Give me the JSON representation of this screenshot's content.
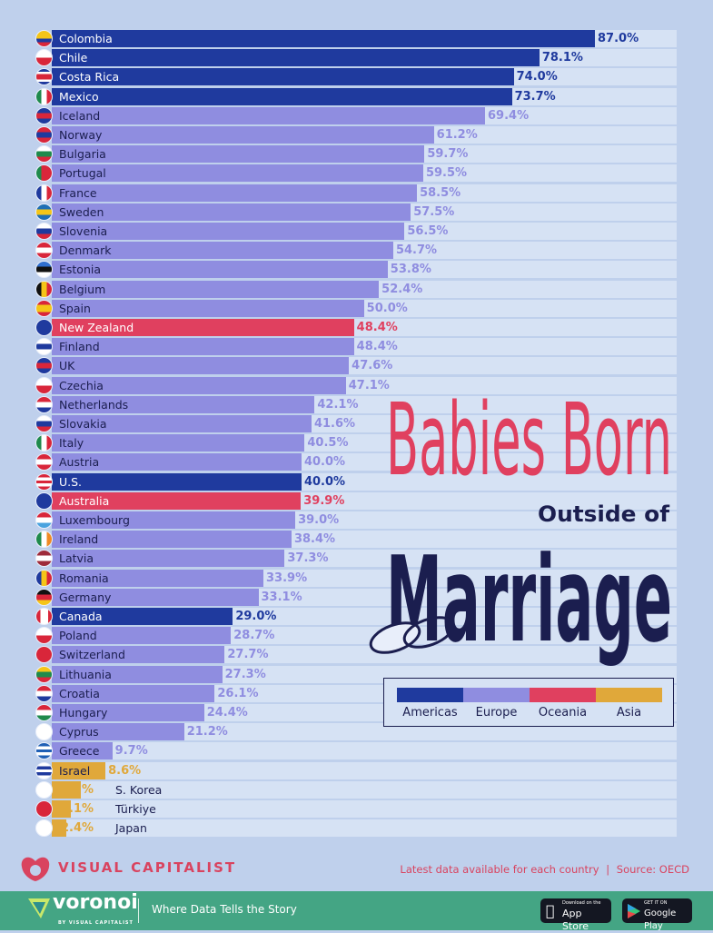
{
  "chart_data": {
    "type": "bar",
    "orientation": "horizontal",
    "title": "Babies Born Outside of Marriage",
    "title_parts": {
      "line1": "Babies Born",
      "line2": "Outside of",
      "line3": "Marriage"
    },
    "unit": "%",
    "xlim": [
      0,
      100
    ],
    "grid": false,
    "region_colors": {
      "Americas": "#1f3a9e",
      "Europe": "#8f8de0",
      "Oceania": "#e0405f",
      "Asia": "#e0a83a"
    },
    "legend": {
      "placement": "bottom-right",
      "entries": [
        "Americas",
        "Europe",
        "Oceania",
        "Asia"
      ]
    },
    "categories": [
      "Colombia",
      "Chile",
      "Costa Rica",
      "Mexico",
      "Iceland",
      "Norway",
      "Bulgaria",
      "Portugal",
      "France",
      "Sweden",
      "Slovenia",
      "Denmark",
      "Estonia",
      "Belgium",
      "Spain",
      "New Zealand",
      "Finland",
      "UK",
      "Czechia",
      "Netherlands",
      "Slovakia",
      "Italy",
      "Austria",
      "U.S.",
      "Australia",
      "Luxembourg",
      "Ireland",
      "Latvia",
      "Romania",
      "Germany",
      "Canada",
      "Poland",
      "Switzerland",
      "Lithuania",
      "Croatia",
      "Hungary",
      "Cyprus",
      "Greece",
      "Israel",
      "S. Korea",
      "Türkiye",
      "Japan"
    ],
    "values": [
      87.0,
      78.1,
      74.0,
      73.7,
      69.4,
      61.2,
      59.7,
      59.5,
      58.5,
      57.5,
      56.5,
      54.7,
      53.8,
      52.4,
      50.0,
      48.4,
      48.4,
      47.6,
      47.1,
      42.1,
      41.6,
      40.5,
      40.0,
      40.0,
      39.9,
      39.0,
      38.4,
      37.3,
      33.9,
      33.1,
      29.0,
      28.7,
      27.7,
      27.3,
      26.1,
      24.4,
      21.2,
      9.7,
      8.6,
      4.7,
      3.1,
      2.4
    ],
    "value_labels": [
      "87.0%",
      "78.1%",
      "74.0%",
      "73.7%",
      "69.4%",
      "61.2%",
      "59.7%",
      "59.5%",
      "58.5%",
      "57.5%",
      "56.5%",
      "54.7%",
      "53.8%",
      "52.4%",
      "50.0%",
      "48.4%",
      "48.4%",
      "47.6%",
      "47.1%",
      "42.1%",
      "41.6%",
      "40.5%",
      "40.0%",
      "40.0%",
      "39.9%",
      "39.0%",
      "38.4%",
      "37.3%",
      "33.9%",
      "33.1%",
      "29.0%",
      "28.7%",
      "27.7%",
      "27.3%",
      "26.1%",
      "24.4%",
      "21.2%",
      "9.7%",
      "8.6%",
      "4.7%",
      "3.1%",
      "2.4%"
    ],
    "regions": [
      "Americas",
      "Americas",
      "Americas",
      "Americas",
      "Europe",
      "Europe",
      "Europe",
      "Europe",
      "Europe",
      "Europe",
      "Europe",
      "Europe",
      "Europe",
      "Europe",
      "Europe",
      "Oceania",
      "Europe",
      "Europe",
      "Europe",
      "Europe",
      "Europe",
      "Europe",
      "Europe",
      "Americas",
      "Oceania",
      "Europe",
      "Europe",
      "Europe",
      "Europe",
      "Europe",
      "Americas",
      "Europe",
      "Europe",
      "Europe",
      "Europe",
      "Europe",
      "Europe",
      "Europe",
      "Asia",
      "Asia",
      "Asia",
      "Asia"
    ],
    "flags": [
      [
        "h",
        "#f5c518",
        "#f5c518",
        "#1f3a9e",
        "#d9263a"
      ],
      [
        "h",
        "#ffffff",
        "#d9263a"
      ],
      [
        "h",
        "#1f3a9e",
        "#fff",
        "#d9263a",
        "#d9263a",
        "#fff",
        "#1f3a9e"
      ],
      [
        "v",
        "#1f8a4c",
        "#ffffff",
        "#d9263a"
      ],
      [
        "h",
        "#1f3a9e",
        "#d9263a",
        "#1f3a9e"
      ],
      [
        "h",
        "#d9263a",
        "#1f3a9e",
        "#d9263a"
      ],
      [
        "h",
        "#ffffff",
        "#1f8a4c",
        "#d9263a"
      ],
      [
        "v",
        "#1f8a4c",
        "#d9263a",
        "#d9263a"
      ],
      [
        "v",
        "#1f3a9e",
        "#ffffff",
        "#d9263a"
      ],
      [
        "h",
        "#1f6fb5",
        "#f5c518",
        "#1f6fb5"
      ],
      [
        "h",
        "#ffffff",
        "#1f3a9e",
        "#d9263a"
      ],
      [
        "h",
        "#d9263a",
        "#ffffff",
        "#d9263a"
      ],
      [
        "h",
        "#2f6fd0",
        "#111111",
        "#ffffff"
      ],
      [
        "v",
        "#111111",
        "#f5c518",
        "#d9263a"
      ],
      [
        "h",
        "#d9263a",
        "#f5c518",
        "#f5c518",
        "#d9263a"
      ],
      [
        "h",
        "#1f3a9e",
        "#1f3a9e"
      ],
      [
        "h",
        "#ffffff",
        "#1f3a9e",
        "#ffffff"
      ],
      [
        "h",
        "#1f3a9e",
        "#d9263a",
        "#1f3a9e"
      ],
      [
        "h",
        "#ffffff",
        "#d9263a"
      ],
      [
        "h",
        "#d9263a",
        "#ffffff",
        "#1f3a9e"
      ],
      [
        "h",
        "#ffffff",
        "#1f3a9e",
        "#d9263a"
      ],
      [
        "v",
        "#1f8a4c",
        "#ffffff",
        "#d9263a"
      ],
      [
        "h",
        "#d9263a",
        "#ffffff",
        "#d9263a"
      ],
      [
        "h",
        "#d9263a",
        "#ffffff",
        "#d9263a",
        "#ffffff",
        "#d9263a"
      ],
      [
        "h",
        "#1f3a9e",
        "#1f3a9e"
      ],
      [
        "h",
        "#d9263a",
        "#ffffff",
        "#4aa3df"
      ],
      [
        "v",
        "#1f8a4c",
        "#ffffff",
        "#f08a24"
      ],
      [
        "h",
        "#9e2b3a",
        "#ffffff",
        "#9e2b3a"
      ],
      [
        "v",
        "#1f3a9e",
        "#f5c518",
        "#d9263a"
      ],
      [
        "h",
        "#111111",
        "#d9263a",
        "#f5c518"
      ],
      [
        "v",
        "#d9263a",
        "#ffffff",
        "#ffffff",
        "#d9263a"
      ],
      [
        "h",
        "#ffffff",
        "#d9263a"
      ],
      [
        "h",
        "#d9263a",
        "#d9263a"
      ],
      [
        "h",
        "#f5c518",
        "#1f8a4c",
        "#d9263a"
      ],
      [
        "h",
        "#d9263a",
        "#ffffff",
        "#1f3a9e"
      ],
      [
        "h",
        "#d9263a",
        "#ffffff",
        "#1f8a4c"
      ],
      [
        "h",
        "#ffffff",
        "#ffffff"
      ],
      [
        "h",
        "#1f5fb5",
        "#ffffff",
        "#1f5fb5",
        "#ffffff",
        "#1f5fb5"
      ],
      [
        "h",
        "#ffffff",
        "#1f3a9e",
        "#ffffff",
        "#1f3a9e",
        "#ffffff"
      ],
      [
        "h",
        "#ffffff",
        "#ffffff"
      ],
      [
        "h",
        "#d9263a",
        "#d9263a"
      ],
      [
        "h",
        "#ffffff",
        "#ffffff"
      ]
    ]
  },
  "legend_labels": [
    "Americas",
    "Europe",
    "Oceania",
    "Asia"
  ],
  "brand": {
    "name": "VISUAL CAPITALIST",
    "voronoi": "voronoi",
    "voronoi_sub": "BY VISUAL CAPITALIST",
    "tagline": "Where Data Tells the Story"
  },
  "source": {
    "note": "Latest data available for each country",
    "separator": "|",
    "text": "Source: OECD"
  },
  "stores": {
    "apple_small": "Download on the",
    "apple_big": "App Store",
    "google_small": "GET IT ON",
    "google_big": "Google Play"
  }
}
